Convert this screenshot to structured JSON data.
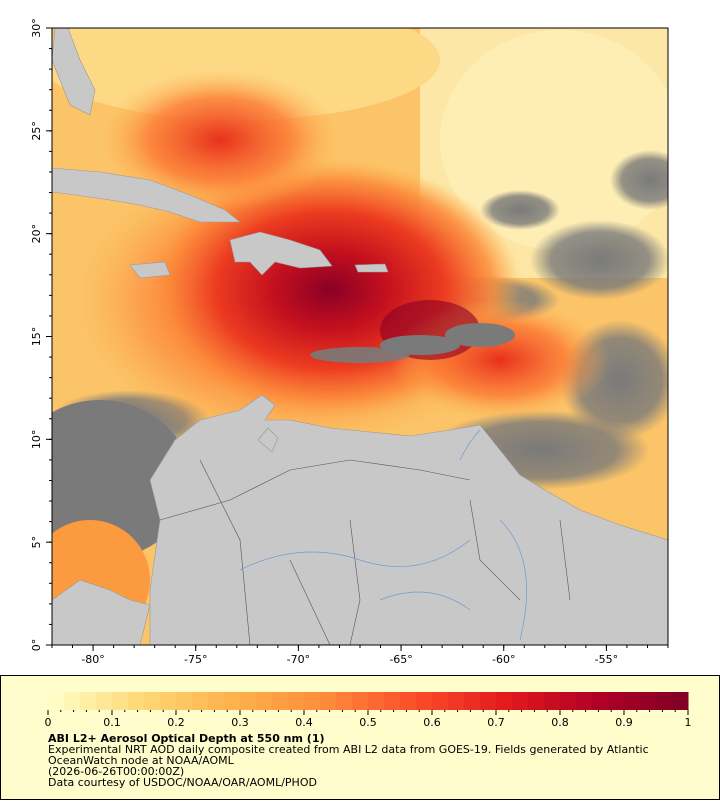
{
  "map": {
    "xlim": [
      -82,
      -52
    ],
    "ylim": [
      0,
      30
    ],
    "xticks": [
      {
        "value": -80,
        "label": "-80°"
      },
      {
        "value": -75,
        "label": "-75°"
      },
      {
        "value": -70,
        "label": "-70°"
      },
      {
        "value": -65,
        "label": "-65°"
      },
      {
        "value": -60,
        "label": "-60°"
      },
      {
        "value": -55,
        "label": "-55°"
      }
    ],
    "yticks": [
      {
        "value": 0,
        "label": "0°"
      },
      {
        "value": 5,
        "label": "5°"
      },
      {
        "value": 10,
        "label": "10°"
      },
      {
        "value": 15,
        "label": "15°"
      },
      {
        "value": 20,
        "label": "20°"
      },
      {
        "value": 25,
        "label": "25°"
      },
      {
        "value": 30,
        "label": "30°"
      }
    ]
  },
  "colorbar": {
    "range": [
      0,
      1
    ],
    "ticks": [
      0,
      0.1,
      0.2,
      0.3,
      0.4,
      0.5,
      0.6,
      0.7,
      0.8,
      0.9,
      1
    ],
    "colors": [
      "#ffffcc",
      "#fed976",
      "#feb24c",
      "#fd8d3c",
      "#fc4e2a",
      "#e31a1c",
      "#b10026",
      "#800026"
    ]
  },
  "legend": {
    "title": "ABI L2+ Aerosol Optical Depth at 550 nm (1)",
    "lines": [
      "Experimental NRT AOD daily composite created from ABI L2 data from GOES-19. Fields generated by Atlantic",
      "OceanWatch node at NOAA/AOML",
      "(2026-06-26T00:00:00Z)",
      "Data courtesy of USDOC/NOAA/OAR/AOML/PHOD"
    ]
  }
}
